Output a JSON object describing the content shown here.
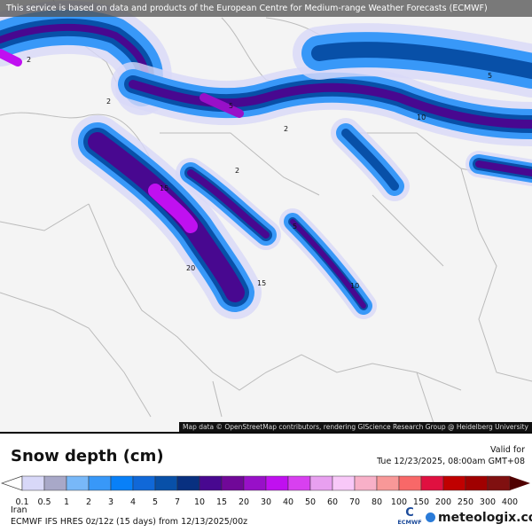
{
  "banner": "This service is based on data and products of the European Centre for Medium-range Weather Forecasts (ECMWF)",
  "attribution": "Map data © OpenStreetMap contributors, rendering GIScience Research Group @ Heidelberg University",
  "legend": {
    "title": "Snow depth (cm)",
    "valid_label": "Valid for",
    "valid_time": "Tue 12/23/2025, 08:00am GMT+08",
    "ticks": [
      "0.1",
      "0.5",
      "1",
      "2",
      "3",
      "4",
      "5",
      "7",
      "10",
      "15",
      "20",
      "30",
      "40",
      "50",
      "60",
      "70",
      "80",
      "100",
      "150",
      "200",
      "250",
      "300",
      "400"
    ],
    "colors": [
      "#d8d8f8",
      "#a8a8c8",
      "#78b8f8",
      "#3898f8",
      "#0880f8",
      "#1068d8",
      "#0850a8",
      "#083080",
      "#480890",
      "#700898",
      "#9810c8",
      "#c010f0",
      "#d840f0",
      "#e8a0f0",
      "#f8c8f8",
      "#f8b0c8",
      "#f89898",
      "#f86868",
      "#e01040",
      "#c00000",
      "#a00000",
      "#801010"
    ],
    "under_color": "#ffffff",
    "over_color": "#500000"
  },
  "footer": {
    "region": "Iran",
    "model": "ECMWF IFS HRES 0z/12z (15 days) from  12/13/2025/00z",
    "ecmwf_logo": "ECMWF",
    "brand": "meteologix.com"
  },
  "map_labels": [
    "2",
    "2",
    "5",
    "10",
    "15",
    "20",
    "2",
    "5",
    "10",
    "15",
    "5",
    "2"
  ]
}
